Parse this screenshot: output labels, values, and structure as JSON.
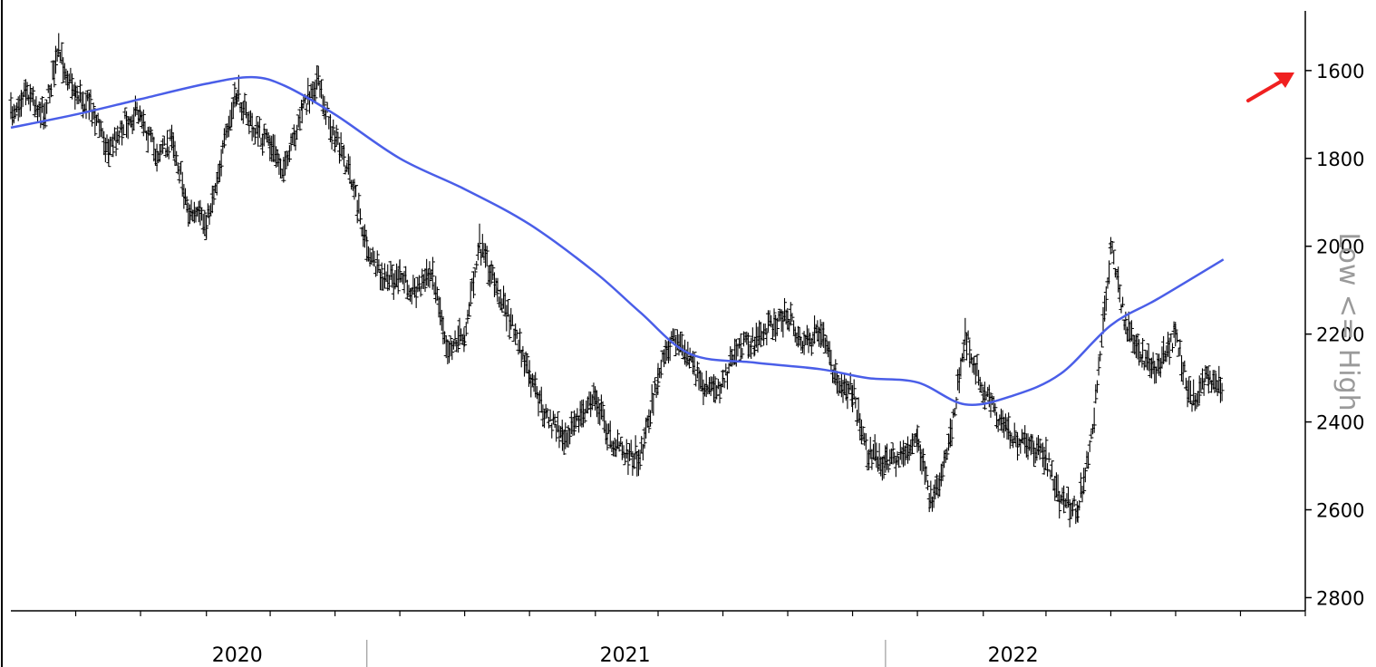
{
  "chart_data": {
    "type": "line",
    "subtype": "ohlc-bars-with-moving-average",
    "y_axis": {
      "label": "Low <= High",
      "side": "right",
      "inverted": true,
      "range": [
        1460,
        2830
      ],
      "ticks": [
        1600,
        1800,
        2000,
        2200,
        2400,
        2600,
        2800
      ]
    },
    "x_axis": {
      "range": [
        "2019-08",
        "2022-12"
      ],
      "year_labels": [
        {
          "label": "2020",
          "center": "2020-03"
        },
        {
          "label": "2021",
          "center": "2021-03"
        },
        {
          "label": "2022",
          "center": "2022-03"
        }
      ],
      "separators": [
        "2020-07",
        "2021-11"
      ]
    },
    "grid": false,
    "annotation": {
      "type": "arrow",
      "color": "#f02020",
      "direction": "up-right"
    },
    "series": [
      {
        "kind": "price",
        "color": "#000000",
        "x": [
          "2019-08-01",
          "2019-08-15",
          "2019-09-01",
          "2019-09-15",
          "2019-10-01",
          "2019-10-15",
          "2019-11-01",
          "2019-11-15",
          "2019-12-01",
          "2019-12-15",
          "2020-01-01",
          "2020-01-15",
          "2020-02-01",
          "2020-02-15",
          "2020-03-01",
          "2020-03-15",
          "2020-04-01",
          "2020-04-15",
          "2020-05-01",
          "2020-05-15",
          "2020-06-01",
          "2020-06-15",
          "2020-07-01",
          "2020-07-15",
          "2020-08-01",
          "2020-08-15",
          "2020-09-01",
          "2020-09-15",
          "2020-10-01",
          "2020-10-15",
          "2020-11-01",
          "2020-11-15",
          "2020-12-01",
          "2020-12-15",
          "2021-01-01",
          "2021-01-15",
          "2021-02-01",
          "2021-02-15",
          "2021-03-01",
          "2021-03-15",
          "2021-04-01",
          "2021-04-15",
          "2021-05-01",
          "2021-05-15",
          "2021-06-01",
          "2021-06-15",
          "2021-07-01",
          "2021-07-15",
          "2021-08-01",
          "2021-08-15",
          "2021-09-01",
          "2021-09-15",
          "2021-10-01",
          "2021-10-15",
          "2021-11-01",
          "2021-11-15",
          "2021-12-01",
          "2021-12-15",
          "2022-01-01",
          "2022-01-15",
          "2022-02-01",
          "2022-02-15",
          "2022-03-01",
          "2022-03-15",
          "2022-04-01",
          "2022-04-15",
          "2022-05-01",
          "2022-05-15",
          "2022-06-01",
          "2022-06-15",
          "2022-07-01",
          "2022-07-15",
          "2022-08-01",
          "2022-08-15",
          "2022-09-01",
          "2022-09-15"
        ],
        "y": [
          1700,
          1640,
          1700,
          1560,
          1650,
          1680,
          1780,
          1720,
          1690,
          1790,
          1760,
          1920,
          1950,
          1800,
          1650,
          1730,
          1770,
          1830,
          1690,
          1620,
          1760,
          1830,
          2000,
          2080,
          2070,
          2100,
          2060,
          2230,
          2200,
          2000,
          2100,
          2180,
          2300,
          2380,
          2430,
          2400,
          2340,
          2440,
          2470,
          2480,
          2300,
          2200,
          2260,
          2330,
          2310,
          2230,
          2220,
          2180,
          2160,
          2220,
          2200,
          2300,
          2330,
          2470,
          2490,
          2480,
          2440,
          2600,
          2430,
          2200,
          2330,
          2390,
          2430,
          2460,
          2480,
          2580,
          2600,
          2420,
          2000,
          2180,
          2250,
          2280,
          2200,
          2350,
          2300,
          2320
        ]
      },
      {
        "kind": "moving-average",
        "color": "#4a5ee8",
        "x": [
          "2019-08-01",
          "2019-10-01",
          "2019-12-01",
          "2020-02-01",
          "2020-03-15",
          "2020-04-15",
          "2020-06-01",
          "2020-08-01",
          "2020-10-01",
          "2020-12-01",
          "2021-02-01",
          "2021-03-15",
          "2021-05-01",
          "2021-07-01",
          "2021-09-01",
          "2021-10-15",
          "2021-12-01",
          "2022-01-15",
          "2022-03-01",
          "2022-04-15",
          "2022-06-01",
          "2022-07-15",
          "2022-09-15"
        ],
        "y": [
          1730,
          1700,
          1665,
          1630,
          1615,
          1635,
          1700,
          1800,
          1870,
          1950,
          2060,
          2150,
          2245,
          2265,
          2280,
          2300,
          2310,
          2360,
          2340,
          2290,
          2180,
          2120,
          2030
        ]
      }
    ]
  }
}
